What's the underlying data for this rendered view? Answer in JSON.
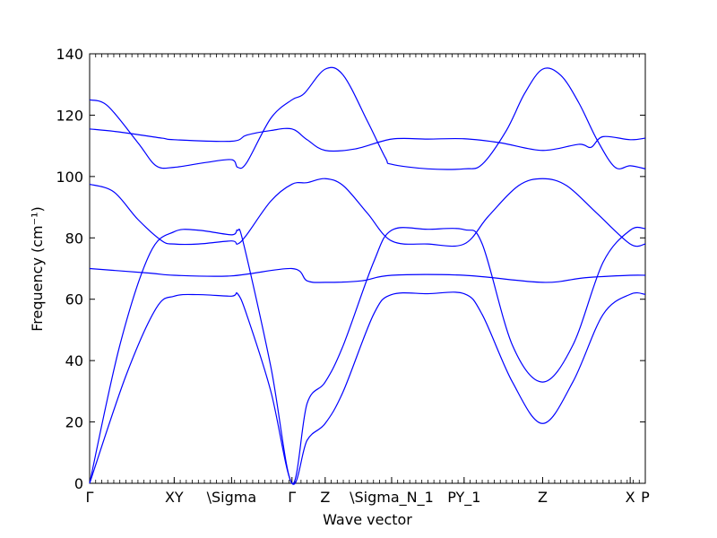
{
  "chart_data": {
    "type": "line",
    "title": "",
    "xlabel": "Wave vector",
    "ylabel": "Frequency (cm⁻¹)",
    "ylim": [
      0,
      140
    ],
    "yticks": [
      0,
      20,
      40,
      60,
      80,
      100,
      120,
      140
    ],
    "xlim": [
      0,
      9.2
    ],
    "grid": false,
    "legend": "none",
    "line_color": "#0000ff",
    "x_high_symmetry_points": [
      {
        "label": "Γ",
        "x": 0
      },
      {
        "label": "XY",
        "x": 1.4
      },
      {
        "label": "\\Sigma",
        "x": 2.35
      },
      {
        "label": "Γ",
        "x": 3.35
      },
      {
        "label": "Z",
        "x": 3.9
      },
      {
        "label": "\\Sigma_N_1",
        "x": 5.0
      },
      {
        "label": "PY_1",
        "x": 6.2
      },
      {
        "label": "Z",
        "x": 7.5
      },
      {
        "label": "X",
        "x": 8.95
      },
      {
        "label": "P",
        "x": 9.2
      }
    ],
    "series": [
      {
        "values": [
          [
            0,
            0
          ],
          [
            0.6,
            35
          ],
          [
            1.1,
            57
          ],
          [
            1.4,
            61
          ],
          [
            1.8,
            61.5
          ],
          [
            2.35,
            61
          ],
          [
            2.45,
            61.8
          ],
          [
            2.6,
            55
          ],
          [
            3.0,
            30
          ],
          [
            3.35,
            0
          ],
          [
            3.6,
            14
          ],
          [
            3.9,
            19.5
          ],
          [
            4.2,
            30
          ],
          [
            4.7,
            55
          ],
          [
            5.0,
            61.5
          ],
          [
            5.6,
            61.8
          ],
          [
            6.2,
            61.8
          ],
          [
            6.5,
            55
          ],
          [
            7.0,
            33
          ],
          [
            7.5,
            19.5
          ],
          [
            8.0,
            33
          ],
          [
            8.5,
            55
          ],
          [
            8.95,
            61.6
          ],
          [
            9.2,
            61.6
          ]
        ]
      },
      {
        "values": [
          [
            0,
            0
          ],
          [
            0.5,
            45
          ],
          [
            1.0,
            75
          ],
          [
            1.4,
            82
          ],
          [
            1.8,
            82.5
          ],
          [
            2.35,
            81
          ],
          [
            2.45,
            82.5
          ],
          [
            2.55,
            78
          ],
          [
            3.0,
            38
          ],
          [
            3.35,
            0
          ],
          [
            3.6,
            26
          ],
          [
            3.9,
            33
          ],
          [
            4.2,
            45
          ],
          [
            4.7,
            72
          ],
          [
            5.0,
            82.5
          ],
          [
            5.6,
            82.8
          ],
          [
            6.2,
            82.7
          ],
          [
            6.5,
            78
          ],
          [
            7.0,
            45
          ],
          [
            7.5,
            33
          ],
          [
            8.0,
            45
          ],
          [
            8.5,
            72
          ],
          [
            8.95,
            82.5
          ],
          [
            9.2,
            83
          ]
        ]
      },
      {
        "values": [
          [
            0,
            70
          ],
          [
            1.0,
            68.5
          ],
          [
            1.4,
            67.8
          ],
          [
            2.35,
            67.6
          ],
          [
            3.35,
            70
          ],
          [
            3.6,
            66
          ],
          [
            3.9,
            65.5
          ],
          [
            4.5,
            66
          ],
          [
            5.0,
            67.8
          ],
          [
            6.2,
            67.8
          ],
          [
            7.5,
            65.5
          ],
          [
            8.2,
            67
          ],
          [
            8.95,
            67.8
          ],
          [
            9.2,
            67.8
          ]
        ]
      },
      {
        "values": [
          [
            0,
            97.5
          ],
          [
            0.4,
            95
          ],
          [
            0.8,
            86
          ],
          [
            1.2,
            79
          ],
          [
            1.4,
            78
          ],
          [
            1.8,
            78
          ],
          [
            2.35,
            79
          ],
          [
            2.45,
            78
          ],
          [
            2.6,
            81
          ],
          [
            3.0,
            92
          ],
          [
            3.35,
            97.5
          ],
          [
            3.6,
            98
          ],
          [
            3.9,
            99.3
          ],
          [
            4.2,
            97
          ],
          [
            4.6,
            88
          ],
          [
            5.0,
            79
          ],
          [
            5.6,
            78
          ],
          [
            6.2,
            78
          ],
          [
            6.6,
            87
          ],
          [
            7.1,
            97
          ],
          [
            7.5,
            99.3
          ],
          [
            7.9,
            97
          ],
          [
            8.4,
            88
          ],
          [
            8.95,
            78
          ],
          [
            9.2,
            78
          ]
        ]
      },
      {
        "values": [
          [
            0,
            115.5
          ],
          [
            0.5,
            114.5
          ],
          [
            1.2,
            112.5
          ],
          [
            1.4,
            112
          ],
          [
            2.35,
            111.5
          ],
          [
            2.6,
            113.5
          ],
          [
            3.0,
            115
          ],
          [
            3.35,
            115.5
          ],
          [
            3.6,
            112
          ],
          [
            3.9,
            108.5
          ],
          [
            4.4,
            109
          ],
          [
            5.0,
            112.2
          ],
          [
            5.6,
            112.2
          ],
          [
            6.2,
            112.3
          ],
          [
            6.8,
            111
          ],
          [
            7.5,
            108.5
          ],
          [
            8.1,
            110.5
          ],
          [
            8.3,
            109.5
          ],
          [
            8.5,
            113
          ],
          [
            8.95,
            112
          ],
          [
            9.2,
            112.5
          ]
        ]
      },
      {
        "values": [
          [
            0,
            125
          ],
          [
            0.3,
            123
          ],
          [
            0.8,
            111
          ],
          [
            1.1,
            103.5
          ],
          [
            1.4,
            103
          ],
          [
            1.9,
            104.5
          ],
          [
            2.35,
            105.5
          ],
          [
            2.45,
            103
          ],
          [
            2.6,
            104.5
          ],
          [
            3.0,
            119
          ],
          [
            3.35,
            125
          ],
          [
            3.55,
            127
          ],
          [
            3.9,
            135
          ],
          [
            4.2,
            133
          ],
          [
            4.6,
            118
          ],
          [
            4.9,
            106
          ],
          [
            5.0,
            104
          ],
          [
            5.6,
            102.5
          ],
          [
            6.2,
            102.5
          ],
          [
            6.5,
            104
          ],
          [
            6.9,
            115
          ],
          [
            7.2,
            127
          ],
          [
            7.5,
            135
          ],
          [
            7.8,
            133
          ],
          [
            8.1,
            124
          ],
          [
            8.4,
            112
          ],
          [
            8.7,
            103
          ],
          [
            8.95,
            103.5
          ],
          [
            9.2,
            102.5
          ]
        ]
      }
    ]
  }
}
